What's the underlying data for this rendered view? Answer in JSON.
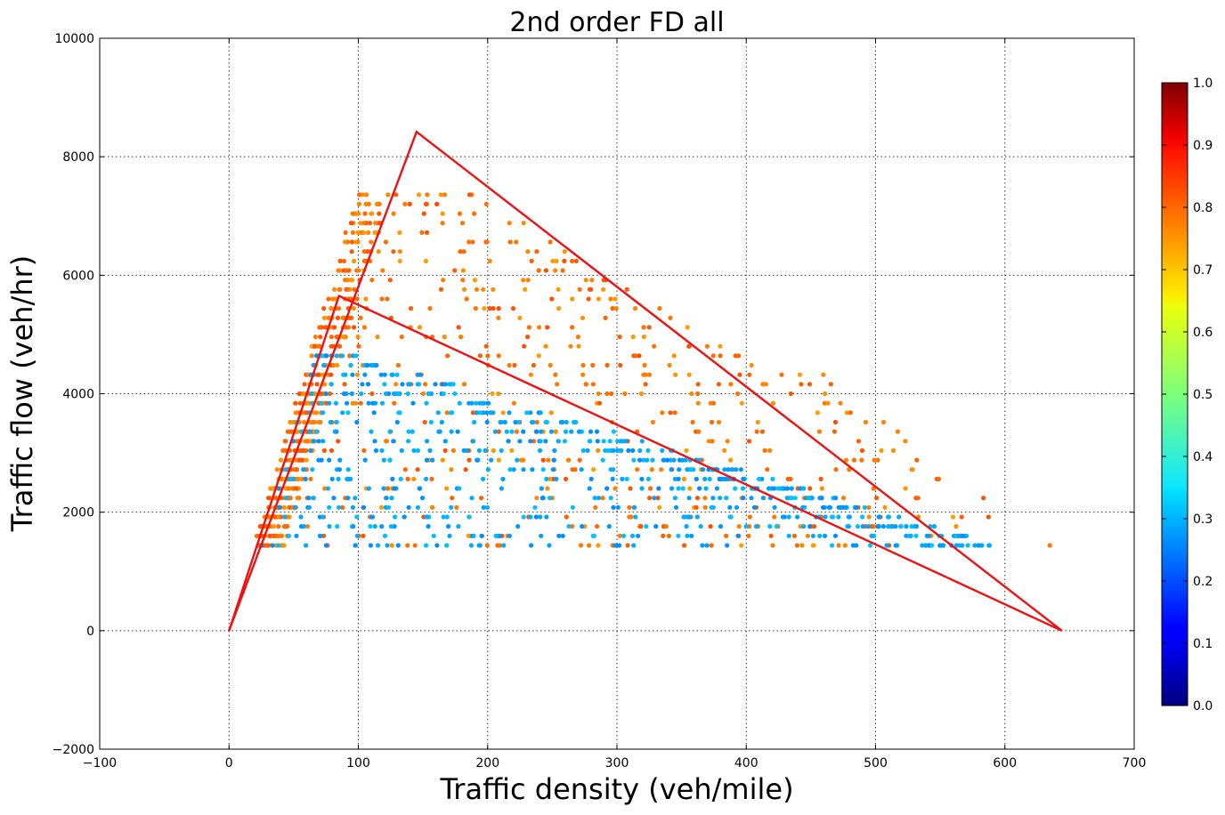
{
  "chart_data": {
    "type": "scatter",
    "title": "2nd order FD all",
    "xlabel": "Traffic density (veh/mile)",
    "ylabel": "Traffic flow (veh/hr)",
    "xlim": [
      -100,
      700
    ],
    "ylim": [
      -2000,
      10000
    ],
    "xticks": [
      -100,
      0,
      100,
      200,
      300,
      400,
      500,
      600,
      700
    ],
    "yticks": [
      -2000,
      0,
      2000,
      4000,
      6000,
      8000,
      10000
    ],
    "xtick_labels": [
      "−100",
      "0",
      "100",
      "200",
      "300",
      "400",
      "500",
      "600",
      "700"
    ],
    "ytick_labels": [
      "−2000",
      "0",
      "2000",
      "4000",
      "6000",
      "8000",
      "10000"
    ],
    "grid": true,
    "colorbar": {
      "min": 0.0,
      "max": 1.0,
      "ticks": [
        "0.0",
        "0.1",
        "0.2",
        "0.3",
        "0.4",
        "0.5",
        "0.6",
        "0.7",
        "0.8",
        "0.9",
        "1.0"
      ],
      "colormap": "jet"
    },
    "fd_lines": {
      "color": "#ee1111",
      "upper": [
        [
          0,
          0
        ],
        [
          145,
          8420
        ],
        [
          644,
          0
        ]
      ],
      "lower": [
        [
          0,
          0
        ],
        [
          85,
          5650
        ],
        [
          644,
          0
        ]
      ]
    },
    "cluster_value_ranges": {
      "orange": [
        0.72,
        0.8
      ],
      "blue": [
        0.26,
        0.32
      ]
    }
  }
}
